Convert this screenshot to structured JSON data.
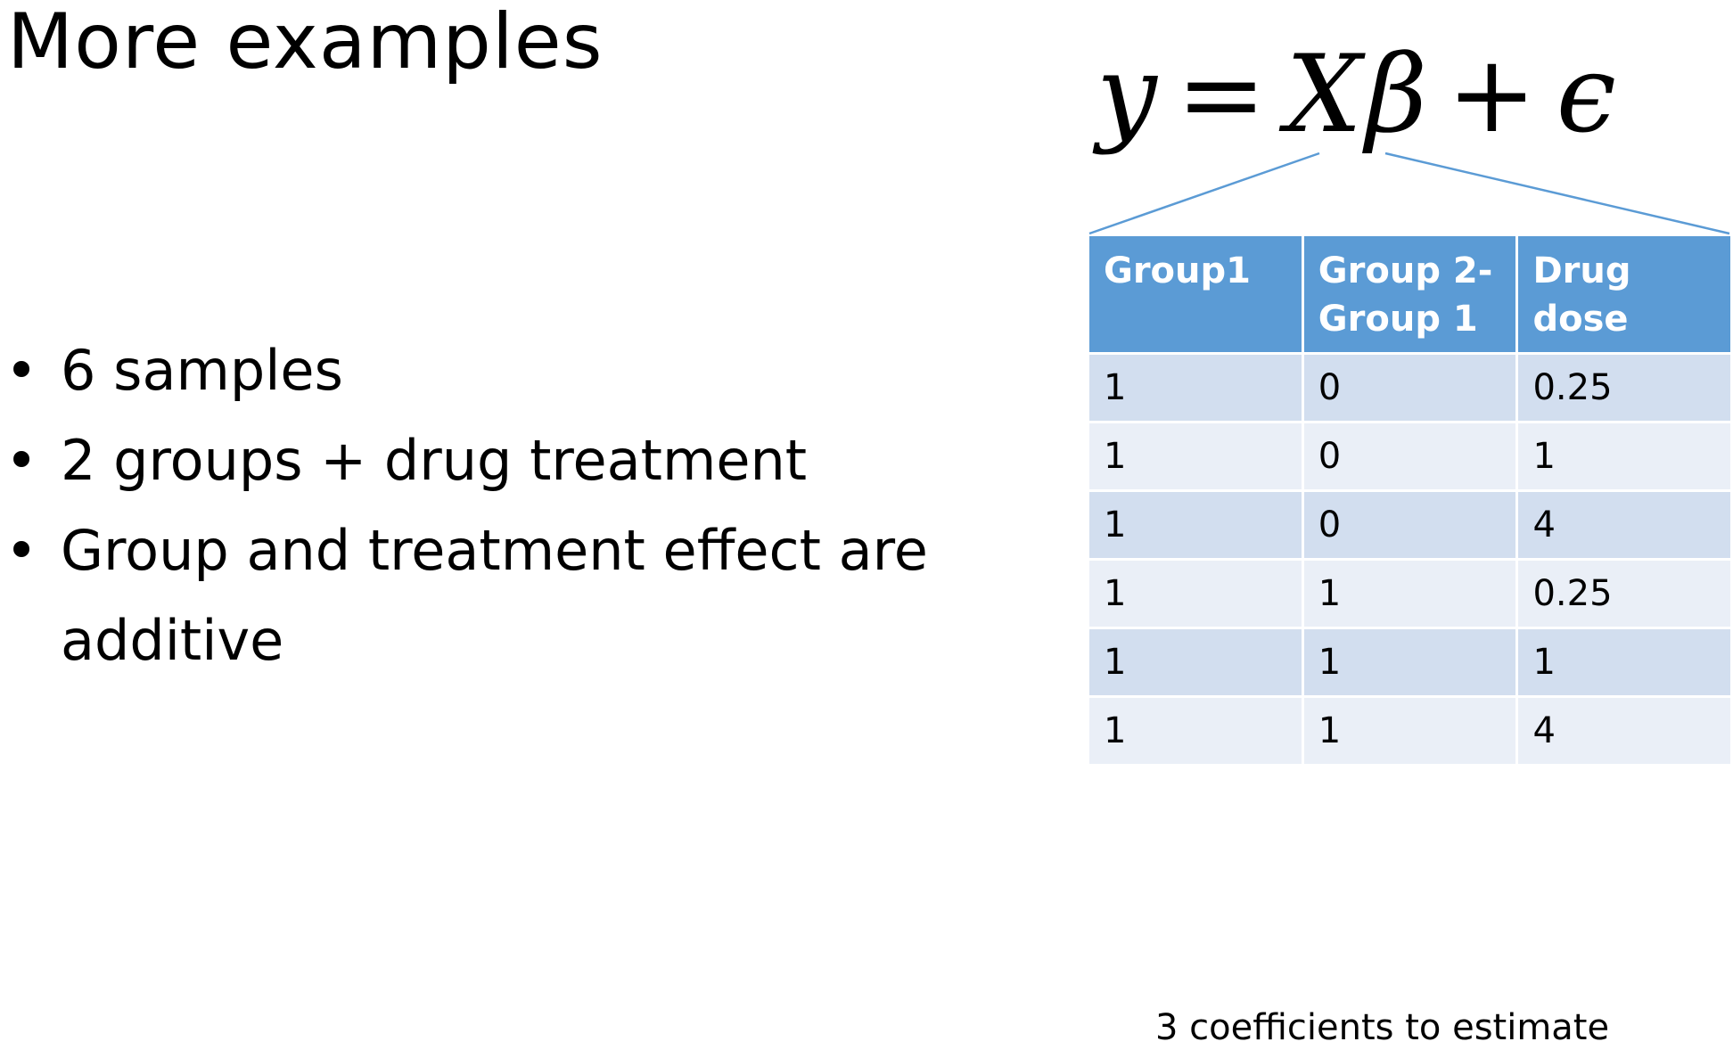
{
  "slide": {
    "title": "More examples",
    "bullets": [
      "6 samples",
      "2 groups + drug treatment",
      "Group and treatment effect are additive"
    ],
    "bullet_symbol": "•"
  },
  "equation": {
    "y": "y",
    "equals": "=",
    "X": "X",
    "beta": "β",
    "plus": "+",
    "epsilon": "ϵ"
  },
  "table": {
    "headers": [
      "Group1",
      "Group 2-Group 1",
      "Drug dose"
    ],
    "header_lines": [
      [
        "Group1"
      ],
      [
        "Group 2-",
        "Group 1"
      ],
      [
        "Drug dose"
      ]
    ],
    "rows": [
      [
        "1",
        "0",
        "0.25"
      ],
      [
        "1",
        "0",
        "1"
      ],
      [
        "1",
        "0",
        "4"
      ],
      [
        "1",
        "1",
        "0.25"
      ],
      [
        "1",
        "1",
        "1"
      ],
      [
        "1",
        "1",
        "4"
      ]
    ]
  },
  "footnote": "3 coefficients to estimate",
  "colors": {
    "header_fill": "#5b9bd5",
    "row_odd_fill": "#d2deef",
    "row_even_fill": "#eaeff7",
    "connector_line": "#5b9bd5"
  }
}
